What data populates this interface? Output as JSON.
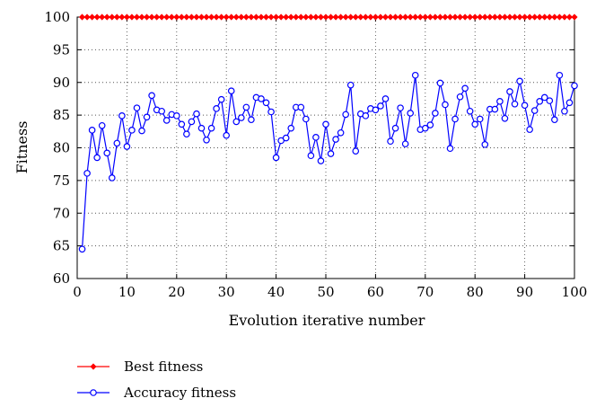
{
  "chart_data": {
    "type": "line",
    "title": "",
    "xlabel": "Evolution iterative number",
    "ylabel": "Fitness",
    "xlim": [
      0,
      100
    ],
    "ylim": [
      60,
      100
    ],
    "xticks": [
      0,
      10,
      20,
      30,
      40,
      50,
      60,
      70,
      80,
      90,
      100
    ],
    "yticks": [
      60,
      65,
      70,
      75,
      80,
      85,
      90,
      95,
      100
    ],
    "grid": true,
    "legend_position": "bottom-left, below plot",
    "x": [
      1,
      2,
      3,
      4,
      5,
      6,
      7,
      8,
      9,
      10,
      11,
      12,
      13,
      14,
      15,
      16,
      17,
      18,
      19,
      20,
      21,
      22,
      23,
      24,
      25,
      26,
      27,
      28,
      29,
      30,
      31,
      32,
      33,
      34,
      35,
      36,
      37,
      38,
      39,
      40,
      41,
      42,
      43,
      44,
      45,
      46,
      47,
      48,
      49,
      50,
      51,
      52,
      53,
      54,
      55,
      56,
      57,
      58,
      59,
      60,
      61,
      62,
      63,
      64,
      65,
      66,
      67,
      68,
      69,
      70,
      71,
      72,
      73,
      74,
      75,
      76,
      77,
      78,
      79,
      80,
      81,
      82,
      83,
      84,
      85,
      86,
      87,
      88,
      89,
      90,
      91,
      92,
      93,
      94,
      95,
      96,
      97,
      98,
      99,
      100
    ],
    "series": [
      {
        "name": "Best fitness",
        "color": "#ff0000",
        "marker": "diamond",
        "values": [
          100,
          100,
          100,
          100,
          100,
          100,
          100,
          100,
          100,
          100,
          100,
          100,
          100,
          100,
          100,
          100,
          100,
          100,
          100,
          100,
          100,
          100,
          100,
          100,
          100,
          100,
          100,
          100,
          100,
          100,
          100,
          100,
          100,
          100,
          100,
          100,
          100,
          100,
          100,
          100,
          100,
          100,
          100,
          100,
          100,
          100,
          100,
          100,
          100,
          100,
          100,
          100,
          100,
          100,
          100,
          100,
          100,
          100,
          100,
          100,
          100,
          100,
          100,
          100,
          100,
          100,
          100,
          100,
          100,
          100,
          100,
          100,
          100,
          100,
          100,
          100,
          100,
          100,
          100,
          100,
          100,
          100,
          100,
          100,
          100,
          100,
          100,
          100,
          100,
          100,
          100,
          100,
          100,
          100,
          100,
          100,
          100,
          100,
          100,
          100
        ]
      },
      {
        "name": "Accuracy fitness",
        "color": "#0000ff",
        "marker": "circle",
        "values": [
          64.5,
          76.1,
          82.7,
          78.5,
          83.4,
          79.2,
          75.4,
          80.7,
          84.9,
          80.2,
          82.7,
          86.1,
          82.6,
          84.7,
          88.0,
          85.8,
          85.6,
          84.2,
          85.1,
          84.9,
          83.6,
          82.1,
          84.0,
          85.2,
          83.0,
          81.2,
          83.0,
          86.0,
          87.4,
          81.9,
          88.7,
          84.0,
          84.6,
          86.2,
          84.3,
          87.7,
          87.5,
          86.9,
          85.5,
          78.5,
          81.1,
          81.5,
          83.0,
          86.2,
          86.2,
          84.4,
          78.8,
          81.6,
          78.0,
          83.6,
          79.1,
          81.3,
          82.3,
          85.1,
          89.6,
          79.5,
          85.2,
          84.9,
          86.0,
          85.8,
          86.4,
          87.5,
          81.0,
          83.0,
          86.1,
          80.6,
          85.3,
          91.1,
          82.8,
          83.0,
          83.5,
          85.3,
          89.9,
          86.6,
          79.9,
          84.4,
          87.8,
          89.1,
          85.6,
          83.6,
          84.4,
          80.5,
          85.9,
          85.9,
          87.1,
          84.5,
          88.6,
          86.7,
          90.2,
          86.5,
          82.8,
          85.7,
          87.1,
          87.7,
          87.2,
          84.3,
          91.1,
          85.6,
          86.9,
          89.5
        ]
      }
    ]
  }
}
